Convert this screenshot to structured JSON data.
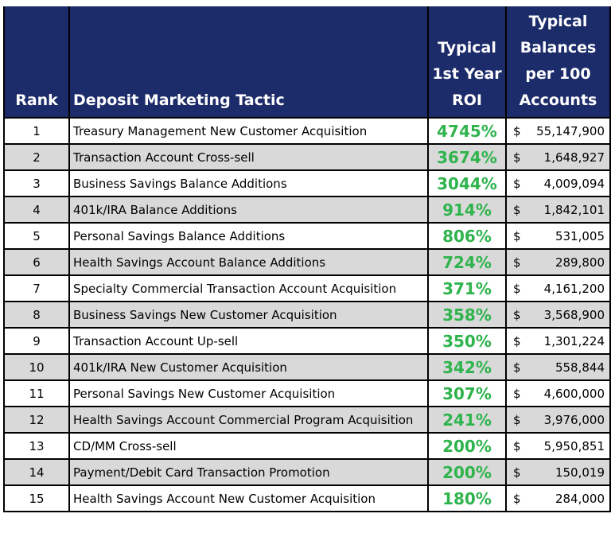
{
  "header": {
    "rank": "Rank",
    "tactic": "Deposit Marketing Tactic",
    "roi": [
      "Typical",
      "1st Year",
      "ROI"
    ],
    "balances": [
      "Typical",
      "Balances",
      "per 100",
      "Accounts"
    ]
  },
  "table": {
    "rows": [
      {
        "rank": "1",
        "tactic": "Treasury Management New Customer Acquisition",
        "roi": "4745%",
        "currency": "$",
        "balance": "55,147,900"
      },
      {
        "rank": "2",
        "tactic": "Transaction Account Cross-sell",
        "roi": "3674%",
        "currency": "$",
        "balance": "1,648,927"
      },
      {
        "rank": "3",
        "tactic": "Business Savings Balance Additions",
        "roi": "3044%",
        "currency": "$",
        "balance": "4,009,094"
      },
      {
        "rank": "4",
        "tactic": "401k/IRA Balance Additions",
        "roi": "914%",
        "currency": "$",
        "balance": "1,842,101"
      },
      {
        "rank": "5",
        "tactic": "Personal Savings Balance Additions",
        "roi": "806%",
        "currency": "$",
        "balance": "531,005"
      },
      {
        "rank": "6",
        "tactic": "Health Savings Account Balance Additions",
        "roi": "724%",
        "currency": "$",
        "balance": "289,800"
      },
      {
        "rank": "7",
        "tactic": "Specialty Commercial Transaction Account Acquisition",
        "roi": "371%",
        "currency": "$",
        "balance": "4,161,200"
      },
      {
        "rank": "8",
        "tactic": "Business Savings New Customer Acquisition",
        "roi": "358%",
        "currency": "$",
        "balance": "3,568,900"
      },
      {
        "rank": "9",
        "tactic": "Transaction Account Up-sell",
        "roi": "350%",
        "currency": "$",
        "balance": "1,301,224"
      },
      {
        "rank": "10",
        "tactic": "401k/IRA New Customer Acquisition",
        "roi": "342%",
        "currency": "$",
        "balance": "558,844"
      },
      {
        "rank": "11",
        "tactic": "Personal Savings New Customer Acquisition",
        "roi": "307%",
        "currency": "$",
        "balance": "4,600,000"
      },
      {
        "rank": "12",
        "tactic": "Health Savings Account Commercial Program Acquisition",
        "roi": "241%",
        "currency": "$",
        "balance": "3,976,000"
      },
      {
        "rank": "13",
        "tactic": "CD/MM Cross-sell",
        "roi": "200%",
        "currency": "$",
        "balance": "5,950,851"
      },
      {
        "rank": "14",
        "tactic": "Payment/Debit Card Transaction Promotion",
        "roi": "200%",
        "currency": "$",
        "balance": "150,019"
      },
      {
        "rank": "15",
        "tactic": "Health Savings Account New Customer Acquisition",
        "roi": "180%",
        "currency": "$",
        "balance": "284,000"
      }
    ]
  }
}
